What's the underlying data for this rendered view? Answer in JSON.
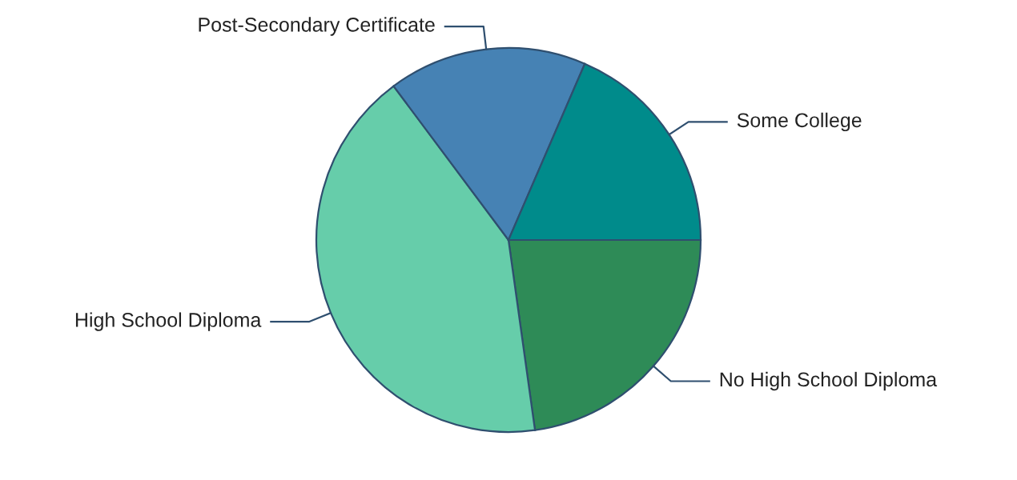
{
  "chart_data": {
    "type": "pie",
    "categories": [
      "No High School Diploma",
      "High School Diploma",
      "Post-Secondary Certificate",
      "Some College"
    ],
    "values": [
      22.8,
      42.0,
      16.7,
      18.5
    ],
    "colors": [
      "#2e8b57",
      "#66cdaa",
      "#4682b4",
      "#008b8b"
    ],
    "legend": false
  }
}
